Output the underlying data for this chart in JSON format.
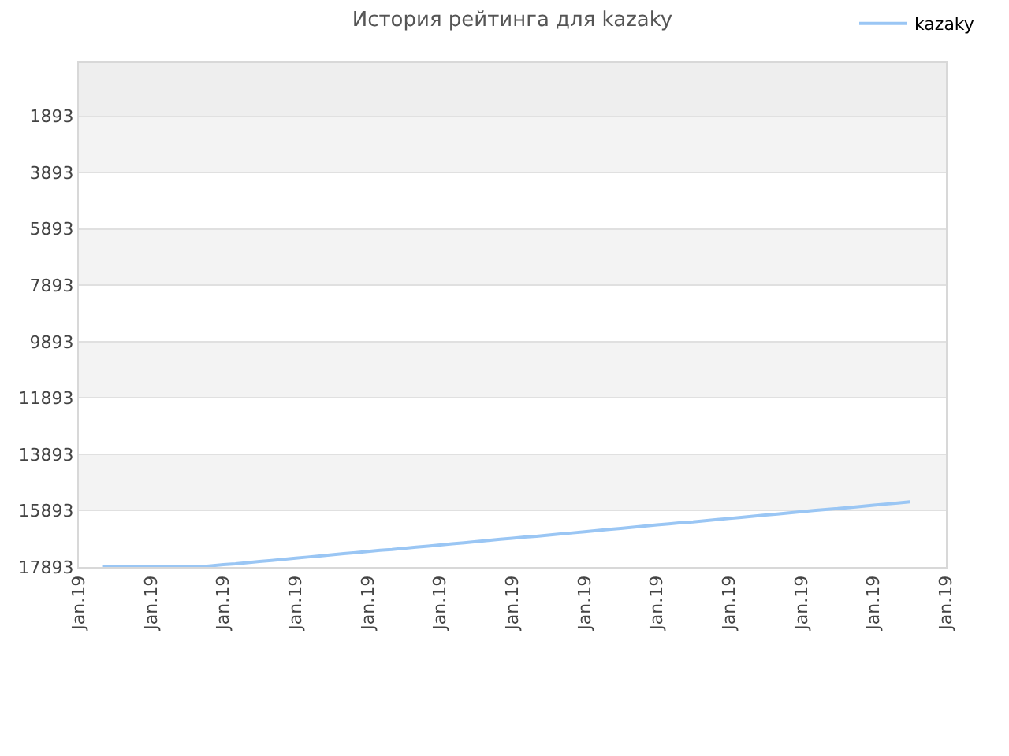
{
  "chart_data": {
    "type": "line",
    "title": "История рейтинга для kazaky",
    "categories": [
      "Jan.19",
      null,
      null,
      null,
      null,
      null,
      "Jan.19",
      null,
      null,
      null,
      null,
      null,
      "Jan.19",
      null,
      null,
      null,
      null,
      null,
      "Jan.19",
      null,
      null,
      null,
      null,
      null,
      "Jan.19",
      null,
      null,
      null,
      null,
      null,
      "Jan.19",
      null,
      null,
      null,
      null,
      null,
      "Jan.19",
      null,
      null,
      null,
      null,
      null,
      "Jan.19",
      null,
      null,
      null,
      null,
      null,
      "Jan.19",
      null,
      null,
      null,
      null,
      null,
      "Jan.19",
      null,
      null,
      null,
      null,
      null,
      "Jan.19",
      null,
      null,
      null,
      null,
      null,
      "Jan.19",
      null,
      null,
      null,
      null,
      null,
      "Jan.19"
    ],
    "series": [
      {
        "name": "kazaky",
        "color": "#9ac6f4",
        "values": [
          null,
          null,
          17890,
          17890,
          17890,
          17890,
          17890,
          17890,
          17890,
          17890,
          17890,
          17850,
          17810,
          17780,
          17740,
          17700,
          17660,
          17620,
          17580,
          17540,
          17500,
          17460,
          17420,
          17380,
          17340,
          17300,
          17270,
          17230,
          17190,
          17150,
          17110,
          17070,
          17030,
          16990,
          16950,
          16910,
          16870,
          16830,
          16800,
          16760,
          16720,
          16680,
          16640,
          16600,
          16560,
          16520,
          16480,
          16440,
          16400,
          16360,
          16320,
          16290,
          16250,
          16210,
          16170,
          16130,
          16090,
          16050,
          16010,
          15970,
          15930,
          15890,
          15850,
          15820,
          15780,
          15740,
          15700,
          15660,
          15620,
          15580,
          null,
          null,
          null
        ]
      }
    ],
    "ylim": [
      17893,
      0
    ],
    "yticks": [
      1893,
      3893,
      5893,
      7893,
      9893,
      11893,
      13893,
      15893,
      17893
    ],
    "grid": "y",
    "legend": "top right",
    "bands": [
      {
        "axis": "y",
        "from": 0,
        "to": 1893,
        "color": "#eeeeee"
      },
      {
        "axis": "y",
        "from": 1893,
        "to": 3893,
        "color": "#f3f3f3"
      },
      {
        "axis": "y",
        "from": 5893,
        "to": 7893,
        "color": "#f3f3f3"
      },
      {
        "axis": "y",
        "from": 9893,
        "to": 11893,
        "color": "#f3f3f3"
      },
      {
        "axis": "y",
        "from": 13893,
        "to": 15893,
        "color": "#f3f3f3"
      }
    ]
  }
}
